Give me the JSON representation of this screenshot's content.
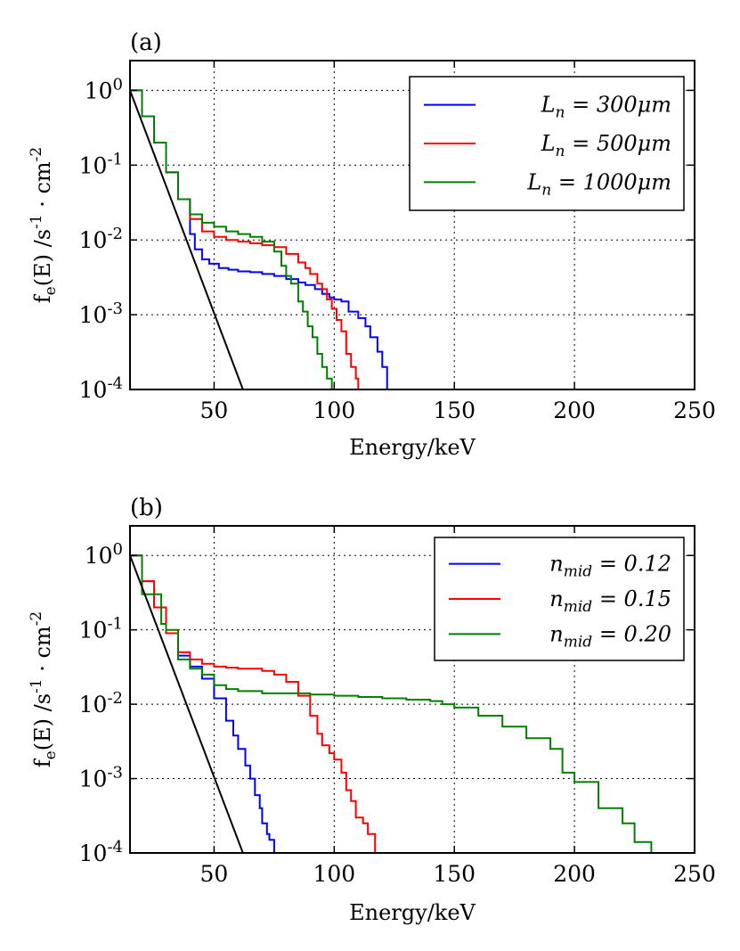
{
  "chart_data": [
    {
      "type": "line",
      "panel_label": "(a)",
      "xlabel": "Energy/keV",
      "ylabel": "f_e(E) /s^-1 · cm^-2",
      "xlim": [
        15,
        250
      ],
      "ylim": [
        0.0001,
        2.5
      ],
      "yscale": "log",
      "grid": true,
      "legend_position": "top-right",
      "x_ticks": [
        50,
        100,
        150,
        200,
        250
      ],
      "x_tick_labels": [
        "50",
        "100",
        "150",
        "200",
        "250"
      ],
      "y_ticks": [
        1,
        0.1,
        0.01,
        0.001,
        0.0001
      ],
      "y_tick_labels": [
        "10^0",
        "10^-1",
        "10^-2",
        "10^-3",
        "10^-4"
      ],
      "series": [
        {
          "name": "L_n = 300μm",
          "color": "#0000ff",
          "step": true,
          "points": [
            [
              15,
              1.0
            ],
            [
              20,
              0.45
            ],
            [
              25,
              0.2
            ],
            [
              30,
              0.08
            ],
            [
              35,
              0.035
            ],
            [
              40,
              0.012
            ],
            [
              42,
              0.0075
            ],
            [
              45,
              0.0055
            ],
            [
              48,
              0.0048
            ],
            [
              52,
              0.0042
            ],
            [
              56,
              0.004
            ],
            [
              60,
              0.0038
            ],
            [
              65,
              0.0037
            ],
            [
              70,
              0.0035
            ],
            [
              75,
              0.0033
            ],
            [
              80,
              0.003
            ],
            [
              85,
              0.0027
            ],
            [
              88,
              0.0025
            ],
            [
              92,
              0.0022
            ],
            [
              95,
              0.0019
            ],
            [
              98,
              0.0017
            ],
            [
              100,
              0.0016
            ],
            [
              103,
              0.0015
            ],
            [
              106,
              0.0011
            ],
            [
              110,
              0.0009
            ],
            [
              113,
              0.0007
            ],
            [
              115,
              0.0005
            ],
            [
              118,
              0.00032
            ],
            [
              120,
              0.0002
            ],
            [
              122,
              0.0001
            ]
          ]
        },
        {
          "name": "L_n = 500μm",
          "color": "#ff0000",
          "step": true,
          "points": [
            [
              15,
              1.0
            ],
            [
              20,
              0.45
            ],
            [
              25,
              0.2
            ],
            [
              30,
              0.08
            ],
            [
              35,
              0.035
            ],
            [
              40,
              0.019
            ],
            [
              45,
              0.013
            ],
            [
              50,
              0.011
            ],
            [
              55,
              0.01
            ],
            [
              60,
              0.0095
            ],
            [
              65,
              0.009
            ],
            [
              70,
              0.0085
            ],
            [
              75,
              0.008
            ],
            [
              80,
              0.0065
            ],
            [
              85,
              0.005
            ],
            [
              88,
              0.0042
            ],
            [
              90,
              0.0035
            ],
            [
              93,
              0.0026
            ],
            [
              95,
              0.0022
            ],
            [
              97,
              0.0016
            ],
            [
              99,
              0.0012
            ],
            [
              101,
              0.00085
            ],
            [
              103,
              0.0006
            ],
            [
              105,
              0.0003
            ],
            [
              107,
              0.0002
            ],
            [
              109,
              0.00014
            ],
            [
              110,
              0.0001
            ]
          ]
        },
        {
          "name": "L_n = 1000μm",
          "color": "#008000",
          "step": true,
          "points": [
            [
              15,
              1.0
            ],
            [
              20,
              0.45
            ],
            [
              25,
              0.2
            ],
            [
              30,
              0.08
            ],
            [
              35,
              0.035
            ],
            [
              40,
              0.022
            ],
            [
              45,
              0.017
            ],
            [
              50,
              0.015
            ],
            [
              55,
              0.013
            ],
            [
              60,
              0.012
            ],
            [
              65,
              0.011
            ],
            [
              70,
              0.0095
            ],
            [
              75,
              0.007
            ],
            [
              78,
              0.0045
            ],
            [
              80,
              0.0033
            ],
            [
              82,
              0.0026
            ],
            [
              85,
              0.0015
            ],
            [
              87,
              0.0011
            ],
            [
              89,
              0.0007
            ],
            [
              91,
              0.0005
            ],
            [
              93,
              0.0003
            ],
            [
              95,
              0.0002
            ],
            [
              97,
              0.00014
            ],
            [
              99,
              0.0001
            ]
          ]
        },
        {
          "name": "",
          "color": "#000000",
          "step": false,
          "points": [
            [
              15,
              1.0
            ],
            [
              62,
              0.0001
            ]
          ]
        }
      ]
    },
    {
      "type": "line",
      "panel_label": "(b)",
      "xlabel": "Energy/keV",
      "ylabel": "f_e(E) /s^-1 · cm^-2",
      "xlim": [
        15,
        250
      ],
      "ylim": [
        0.0001,
        2.5
      ],
      "yscale": "log",
      "grid": true,
      "legend_position": "top-right",
      "x_ticks": [
        50,
        100,
        150,
        200,
        250
      ],
      "x_tick_labels": [
        "50",
        "100",
        "150",
        "200",
        "250"
      ],
      "y_ticks": [
        1,
        0.1,
        0.01,
        0.001,
        0.0001
      ],
      "y_tick_labels": [
        "10^0",
        "10^-1",
        "10^-2",
        "10^-3",
        "10^-4"
      ],
      "series": [
        {
          "name": "n_mid = 0.12",
          "color": "#0000ff",
          "step": true,
          "points": [
            [
              15,
              1.0
            ],
            [
              20,
              0.45
            ],
            [
              25,
              0.2
            ],
            [
              30,
              0.09
            ],
            [
              35,
              0.045
            ],
            [
              40,
              0.032
            ],
            [
              45,
              0.022
            ],
            [
              50,
              0.012
            ],
            [
              55,
              0.006
            ],
            [
              58,
              0.0038
            ],
            [
              60,
              0.0025
            ],
            [
              63,
              0.0015
            ],
            [
              65,
              0.001
            ],
            [
              67,
              0.0006
            ],
            [
              69,
              0.0004
            ],
            [
              70,
              0.00025
            ],
            [
              72,
              0.00018
            ],
            [
              73,
              0.00015
            ],
            [
              75,
              0.0001
            ]
          ]
        },
        {
          "name": "n_mid = 0.15",
          "color": "#ff0000",
          "step": true,
          "points": [
            [
              15,
              1.0
            ],
            [
              20,
              0.45
            ],
            [
              25,
              0.2
            ],
            [
              30,
              0.09
            ],
            [
              35,
              0.05
            ],
            [
              40,
              0.04
            ],
            [
              45,
              0.035
            ],
            [
              50,
              0.032
            ],
            [
              55,
              0.031
            ],
            [
              60,
              0.03
            ],
            [
              65,
              0.03
            ],
            [
              70,
              0.028
            ],
            [
              75,
              0.025
            ],
            [
              80,
              0.02
            ],
            [
              85,
              0.013
            ],
            [
              90,
              0.007
            ],
            [
              93,
              0.004
            ],
            [
              95,
              0.0028
            ],
            [
              98,
              0.0022
            ],
            [
              100,
              0.0018
            ],
            [
              103,
              0.0012
            ],
            [
              105,
              0.0007
            ],
            [
              107,
              0.0005
            ],
            [
              109,
              0.0003
            ],
            [
              112,
              0.00025
            ],
            [
              114,
              0.00018
            ],
            [
              117,
              0.0001
            ]
          ]
        },
        {
          "name": "n_mid = 0.20",
          "color": "#008000",
          "step": true,
          "points": [
            [
              15,
              1.0
            ],
            [
              20,
              0.3
            ],
            [
              28,
              0.12
            ],
            [
              30,
              0.1
            ],
            [
              35,
              0.04
            ],
            [
              40,
              0.03
            ],
            [
              45,
              0.025
            ],
            [
              50,
              0.018
            ],
            [
              55,
              0.016
            ],
            [
              60,
              0.015
            ],
            [
              70,
              0.014
            ],
            [
              80,
              0.014
            ],
            [
              90,
              0.0135
            ],
            [
              100,
              0.013
            ],
            [
              110,
              0.0125
            ],
            [
              120,
              0.012
            ],
            [
              130,
              0.0115
            ],
            [
              140,
              0.011
            ],
            [
              145,
              0.01
            ],
            [
              150,
              0.009
            ],
            [
              160,
              0.007
            ],
            [
              170,
              0.005
            ],
            [
              180,
              0.0035
            ],
            [
              190,
              0.0025
            ],
            [
              195,
              0.0012
            ],
            [
              200,
              0.0009
            ],
            [
              210,
              0.0004
            ],
            [
              220,
              0.00025
            ],
            [
              225,
              0.00014
            ],
            [
              232,
              0.0001
            ]
          ]
        },
        {
          "name": "",
          "color": "#000000",
          "step": false,
          "points": [
            [
              15,
              1.0
            ],
            [
              62,
              0.0001
            ]
          ]
        }
      ]
    }
  ]
}
